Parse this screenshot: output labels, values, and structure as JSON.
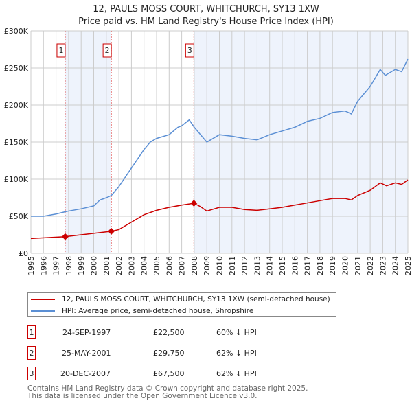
{
  "chart_data": {
    "type": "line",
    "title": "12, PAULS MOSS COURT, WHITCHURCH, SY13 1XW",
    "subtitle": "Price paid vs. HM Land Registry's House Price Index (HPI)",
    "xlim": [
      1995,
      2025
    ],
    "ylim": [
      0,
      300000
    ],
    "x_ticks": [
      "1995",
      "1996",
      "1997",
      "1998",
      "1999",
      "2000",
      "2001",
      "2002",
      "2003",
      "2004",
      "2005",
      "2006",
      "2007",
      "2008",
      "2009",
      "2010",
      "2011",
      "2012",
      "2013",
      "2014",
      "2015",
      "2016",
      "2017",
      "2018",
      "2019",
      "2020",
      "2021",
      "2022",
      "2023",
      "2024",
      "2025"
    ],
    "y_ticks": [
      {
        "v": 0,
        "label": "£0"
      },
      {
        "v": 50000,
        "label": "£50K"
      },
      {
        "v": 100000,
        "label": "£100K"
      },
      {
        "v": 150000,
        "label": "£150K"
      },
      {
        "v": 200000,
        "label": "£200K"
      },
      {
        "v": 250000,
        "label": "£250K"
      },
      {
        "v": 300000,
        "label": "£300K"
      }
    ],
    "series": [
      {
        "name": "12, PAULS MOSS COURT, WHITCHURCH, SY13 1XW (semi-detached house)",
        "color": "#cc0000",
        "points": [
          [
            1995,
            20000
          ],
          [
            1997.73,
            22500
          ],
          [
            1998,
            23000
          ],
          [
            1999,
            25000
          ],
          [
            2000,
            27000
          ],
          [
            2001.4,
            29750
          ],
          [
            2002,
            32000
          ],
          [
            2003,
            42000
          ],
          [
            2004,
            52000
          ],
          [
            2005,
            58000
          ],
          [
            2006,
            62000
          ],
          [
            2007,
            65000
          ],
          [
            2007.97,
            67500
          ],
          [
            2008.5,
            63000
          ],
          [
            2009,
            57000
          ],
          [
            2010,
            62000
          ],
          [
            2011,
            62000
          ],
          [
            2012,
            59000
          ],
          [
            2013,
            58000
          ],
          [
            2014,
            60000
          ],
          [
            2015,
            62000
          ],
          [
            2016,
            65000
          ],
          [
            2017,
            68000
          ],
          [
            2018,
            71000
          ],
          [
            2019,
            74000
          ],
          [
            2020,
            74000
          ],
          [
            2020.5,
            72000
          ],
          [
            2021,
            78000
          ],
          [
            2022,
            85000
          ],
          [
            2022.8,
            95000
          ],
          [
            2023.3,
            91000
          ],
          [
            2024,
            95000
          ],
          [
            2024.5,
            93000
          ],
          [
            2025,
            99000
          ]
        ]
      },
      {
        "name": "HPI: Average price, semi-detached house, Shropshire",
        "color": "#5b8fd4",
        "points": [
          [
            1995,
            50000
          ],
          [
            1996,
            50000
          ],
          [
            1997,
            53000
          ],
          [
            1997.73,
            56000
          ],
          [
            1998,
            57000
          ],
          [
            1999,
            60000
          ],
          [
            2000,
            64000
          ],
          [
            2000.5,
            72000
          ],
          [
            2001,
            75000
          ],
          [
            2001.4,
            78000
          ],
          [
            2002,
            90000
          ],
          [
            2003,
            115000
          ],
          [
            2004,
            140000
          ],
          [
            2004.5,
            150000
          ],
          [
            2005,
            155000
          ],
          [
            2006,
            160000
          ],
          [
            2006.7,
            170000
          ],
          [
            2007,
            172000
          ],
          [
            2007.6,
            180000
          ],
          [
            2008,
            170000
          ],
          [
            2008.5,
            160000
          ],
          [
            2009,
            150000
          ],
          [
            2010,
            160000
          ],
          [
            2011,
            158000
          ],
          [
            2012,
            155000
          ],
          [
            2013,
            153000
          ],
          [
            2014,
            160000
          ],
          [
            2015,
            165000
          ],
          [
            2016,
            170000
          ],
          [
            2017,
            178000
          ],
          [
            2018,
            182000
          ],
          [
            2019,
            190000
          ],
          [
            2020,
            192000
          ],
          [
            2020.5,
            188000
          ],
          [
            2021,
            205000
          ],
          [
            2022,
            225000
          ],
          [
            2022.8,
            248000
          ],
          [
            2023.2,
            240000
          ],
          [
            2024,
            248000
          ],
          [
            2024.5,
            245000
          ],
          [
            2025,
            262000
          ]
        ]
      }
    ],
    "sales": [
      {
        "id": "1",
        "x": 1997.73,
        "price": 22500,
        "date": "24-SEP-1997",
        "price_label": "£22,500",
        "hpi": "60% ↓ HPI"
      },
      {
        "id": "2",
        "x": 2001.4,
        "price": 29750,
        "date": "25-MAY-2001",
        "price_label": "£29,750",
        "hpi": "62% ↓ HPI"
      },
      {
        "id": "3",
        "x": 2007.97,
        "price": 67500,
        "date": "20-DEC-2007",
        "price_label": "£67,500",
        "hpi": "62% ↓ HPI"
      }
    ],
    "legend_placement": "below"
  },
  "footer": {
    "line1": "Contains HM Land Registry data © Crown copyright and database right 2025.",
    "line2": "This data is licensed under the Open Government Licence v3.0."
  }
}
